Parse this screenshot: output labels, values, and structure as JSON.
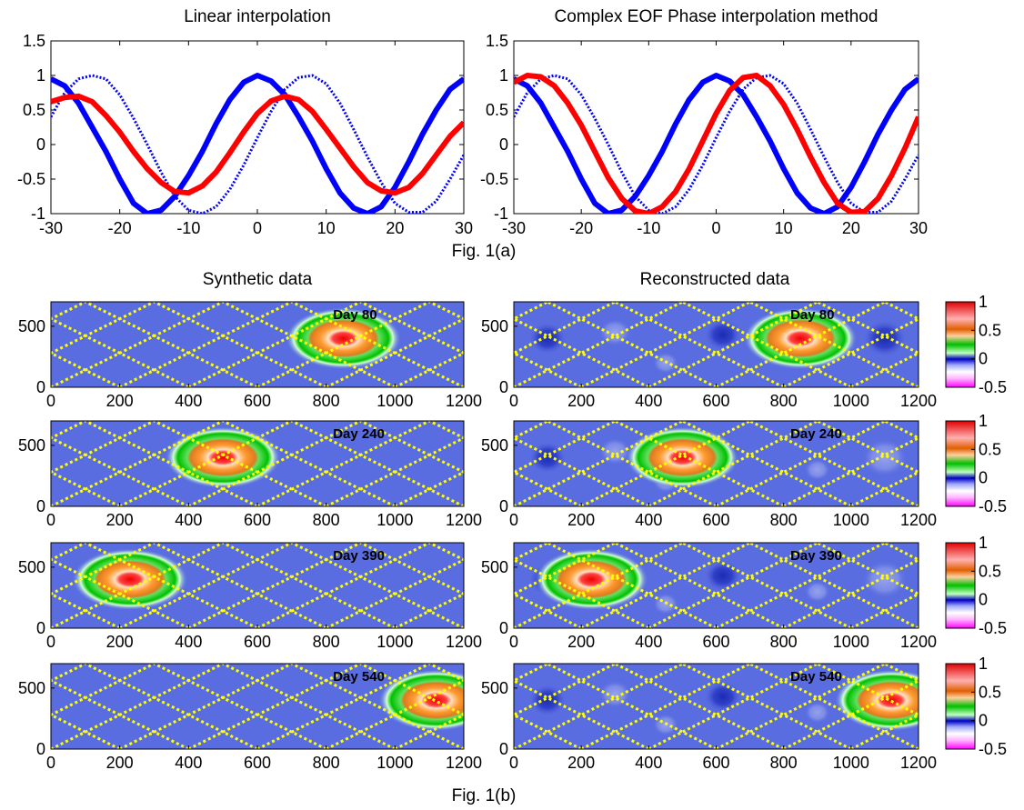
{
  "figure_a": {
    "caption": "Fig. 1(a)",
    "panels": [
      {
        "title": "Linear interpolation",
        "method": "linear"
      },
      {
        "title": "Complex EOF Phase interpolation method",
        "method": "ceof"
      }
    ]
  },
  "figure_b": {
    "caption": "Fig. 1(b)",
    "column_titles": [
      "Synthetic data",
      "Reconstructed data"
    ]
  },
  "colors": {
    "observed": "#0000ff",
    "interpolated": "#ff0000",
    "track": "#ffff00",
    "background_field": "#5a6de0"
  },
  "chart_data": [
    {
      "type": "line",
      "panel": "linear",
      "title": "Linear interpolation",
      "xlim": [
        -30,
        30
      ],
      "ylim": [
        -1,
        1.5
      ],
      "xticks": [
        -30,
        -20,
        -10,
        0,
        10,
        20,
        30
      ],
      "yticks": [
        -1,
        -0.5,
        0,
        0.5,
        1,
        1.5
      ],
      "series": [
        {
          "style": "solid-blue",
          "x": [
            -30,
            -28,
            -26,
            -24,
            -22,
            -20,
            -18,
            -16,
            -14,
            -12,
            -10,
            -8,
            -6,
            -4,
            -2,
            0,
            2,
            4,
            6,
            8,
            10,
            12,
            14,
            16,
            18,
            20,
            22,
            24,
            26,
            28,
            30
          ],
          "y": [
            0.95,
            0.85,
            0.6,
            0.25,
            -0.1,
            -0.5,
            -0.85,
            -1.0,
            -0.95,
            -0.75,
            -0.45,
            -0.1,
            0.3,
            0.65,
            0.9,
            1.0,
            0.92,
            0.72,
            0.4,
            0.05,
            -0.35,
            -0.7,
            -0.92,
            -1.0,
            -0.9,
            -0.62,
            -0.25,
            0.15,
            0.5,
            0.8,
            0.95
          ]
        },
        {
          "style": "dotted-blue",
          "x": [
            -30,
            -28,
            -26,
            -24,
            -22,
            -20,
            -18,
            -16,
            -14,
            -12,
            -10,
            -8,
            -6,
            -4,
            -2,
            0,
            2,
            4,
            6,
            8,
            10,
            12,
            14,
            16,
            18,
            20,
            22,
            24,
            26,
            28,
            30
          ],
          "y": [
            0.4,
            0.75,
            0.95,
            1.0,
            0.95,
            0.72,
            0.38,
            0.0,
            -0.4,
            -0.75,
            -0.95,
            -1.0,
            -0.9,
            -0.65,
            -0.3,
            0.1,
            0.48,
            0.8,
            0.97,
            1.0,
            0.88,
            0.6,
            0.22,
            -0.18,
            -0.55,
            -0.85,
            -0.98,
            -0.98,
            -0.82,
            -0.5,
            -0.15
          ]
        },
        {
          "style": "solid-red",
          "x": [
            -30,
            -28,
            -26,
            -24,
            -22,
            -20,
            -18,
            -16,
            -14,
            -12,
            -10,
            -8,
            -6,
            -4,
            -2,
            0,
            2,
            4,
            6,
            8,
            10,
            12,
            14,
            16,
            18,
            20,
            22,
            24,
            26,
            28,
            30
          ],
          "y": [
            0.62,
            0.68,
            0.7,
            0.62,
            0.42,
            0.18,
            -0.1,
            -0.35,
            -0.55,
            -0.68,
            -0.7,
            -0.6,
            -0.4,
            -0.12,
            0.18,
            0.45,
            0.63,
            0.7,
            0.65,
            0.48,
            0.22,
            -0.05,
            -0.32,
            -0.55,
            -0.67,
            -0.7,
            -0.62,
            -0.42,
            -0.15,
            0.12,
            0.32
          ]
        }
      ]
    },
    {
      "type": "line",
      "panel": "ceof",
      "title": "Complex EOF Phase interpolation method",
      "xlim": [
        -30,
        30
      ],
      "ylim": [
        -1,
        1.5
      ],
      "xticks": [
        -30,
        -20,
        -10,
        0,
        10,
        20,
        30
      ],
      "yticks": [
        -1,
        -0.5,
        0,
        0.5,
        1,
        1.5
      ],
      "series": [
        {
          "style": "solid-blue",
          "x": [
            -30,
            -28,
            -26,
            -24,
            -22,
            -20,
            -18,
            -16,
            -14,
            -12,
            -10,
            -8,
            -6,
            -4,
            -2,
            0,
            2,
            4,
            6,
            8,
            10,
            12,
            14,
            16,
            18,
            20,
            22,
            24,
            26,
            28,
            30
          ],
          "y": [
            0.95,
            0.85,
            0.6,
            0.25,
            -0.1,
            -0.5,
            -0.85,
            -1.0,
            -0.95,
            -0.75,
            -0.45,
            -0.1,
            0.3,
            0.65,
            0.9,
            1.0,
            0.92,
            0.72,
            0.4,
            0.05,
            -0.35,
            -0.7,
            -0.92,
            -1.0,
            -0.9,
            -0.62,
            -0.25,
            0.15,
            0.5,
            0.8,
            0.95
          ]
        },
        {
          "style": "dotted-blue",
          "x": [
            -30,
            -28,
            -26,
            -24,
            -22,
            -20,
            -18,
            -16,
            -14,
            -12,
            -10,
            -8,
            -6,
            -4,
            -2,
            0,
            2,
            4,
            6,
            8,
            10,
            12,
            14,
            16,
            18,
            20,
            22,
            24,
            26,
            28,
            30
          ],
          "y": [
            0.4,
            0.75,
            0.95,
            1.0,
            0.95,
            0.72,
            0.38,
            0.0,
            -0.4,
            -0.75,
            -0.95,
            -1.0,
            -0.9,
            -0.65,
            -0.3,
            0.1,
            0.48,
            0.8,
            0.97,
            1.0,
            0.88,
            0.6,
            0.22,
            -0.18,
            -0.55,
            -0.85,
            -0.98,
            -0.98,
            -0.82,
            -0.5,
            -0.15
          ]
        },
        {
          "style": "solid-red",
          "x": [
            -30,
            -28,
            -26,
            -24,
            -22,
            -20,
            -18,
            -16,
            -14,
            -12,
            -10,
            -8,
            -6,
            -4,
            -2,
            0,
            2,
            4,
            6,
            8,
            10,
            12,
            14,
            16,
            18,
            20,
            22,
            24,
            26,
            28,
            30
          ],
          "y": [
            0.9,
            1.0,
            0.98,
            0.85,
            0.6,
            0.28,
            -0.1,
            -0.48,
            -0.78,
            -0.96,
            -1.0,
            -0.9,
            -0.68,
            -0.35,
            0.05,
            0.45,
            0.78,
            0.97,
            1.0,
            0.85,
            0.58,
            0.22,
            -0.18,
            -0.55,
            -0.85,
            -0.98,
            -0.97,
            -0.78,
            -0.45,
            -0.05,
            0.4
          ]
        }
      ]
    },
    {
      "type": "heatmap",
      "rows": [
        {
          "day_label": "Day 80",
          "blob_center": [
            850,
            400
          ]
        },
        {
          "day_label": "Day 240",
          "blob_center": [
            500,
            400
          ]
        },
        {
          "day_label": "Day 390",
          "blob_center": [
            230,
            400
          ]
        },
        {
          "day_label": "Day 540",
          "blob_center": [
            1120,
            400
          ]
        }
      ],
      "xlim": [
        0,
        1200
      ],
      "ylim": [
        0,
        700
      ],
      "xticks": [
        0,
        200,
        400,
        600,
        800,
        1000,
        1200
      ],
      "yticks": [
        0,
        500
      ],
      "colorbar": {
        "ticks": [
          "1",
          "0.5",
          "0",
          "-0.5"
        ],
        "range": [
          -0.5,
          1
        ],
        "colors": [
          "#ff00ff",
          "#ffc0ff",
          "#e0e0ff",
          "#0000c0",
          "#a0ffa0",
          "#00c000",
          "#ffb070",
          "#e05000",
          "#ff6060",
          "#e00000"
        ]
      }
    }
  ]
}
